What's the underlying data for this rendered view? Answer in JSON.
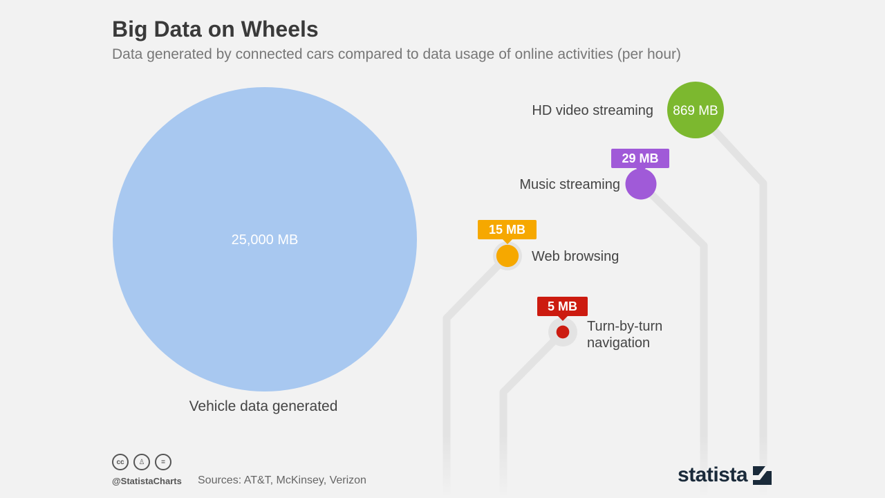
{
  "title": "Big Data on Wheels",
  "subtitle": "Data generated by connected cars compared to data usage of online activities (per hour)",
  "chart_data": {
    "type": "bubble",
    "unit": "MB",
    "items": [
      {
        "label": "Vehicle data generated",
        "value": 25000,
        "value_label": "25,000 MB",
        "color": "#a8c8f0"
      },
      {
        "label": "HD video streaming",
        "value": 869,
        "value_label": "869 MB",
        "color": "#7cb82f"
      },
      {
        "label": "Music streaming",
        "value": 29,
        "value_label": "29 MB",
        "color": "#a05ad8"
      },
      {
        "label": "Web browsing",
        "value": 15,
        "value_label": "15 MB",
        "color": "#f6a800"
      },
      {
        "label": "Turn-by-turn navigation",
        "value": 5,
        "value_label": "5 MB",
        "color": "#cc1b10"
      }
    ]
  },
  "footer": {
    "credit": "@StatistaCharts",
    "sources": "Sources: AT&T, McKinsey, Verizon",
    "cc_icons": [
      "cc-icon",
      "by-icon",
      "nd-icon"
    ],
    "cc_glyphs": [
      "cc",
      "♙",
      "="
    ],
    "brand": "statista"
  }
}
